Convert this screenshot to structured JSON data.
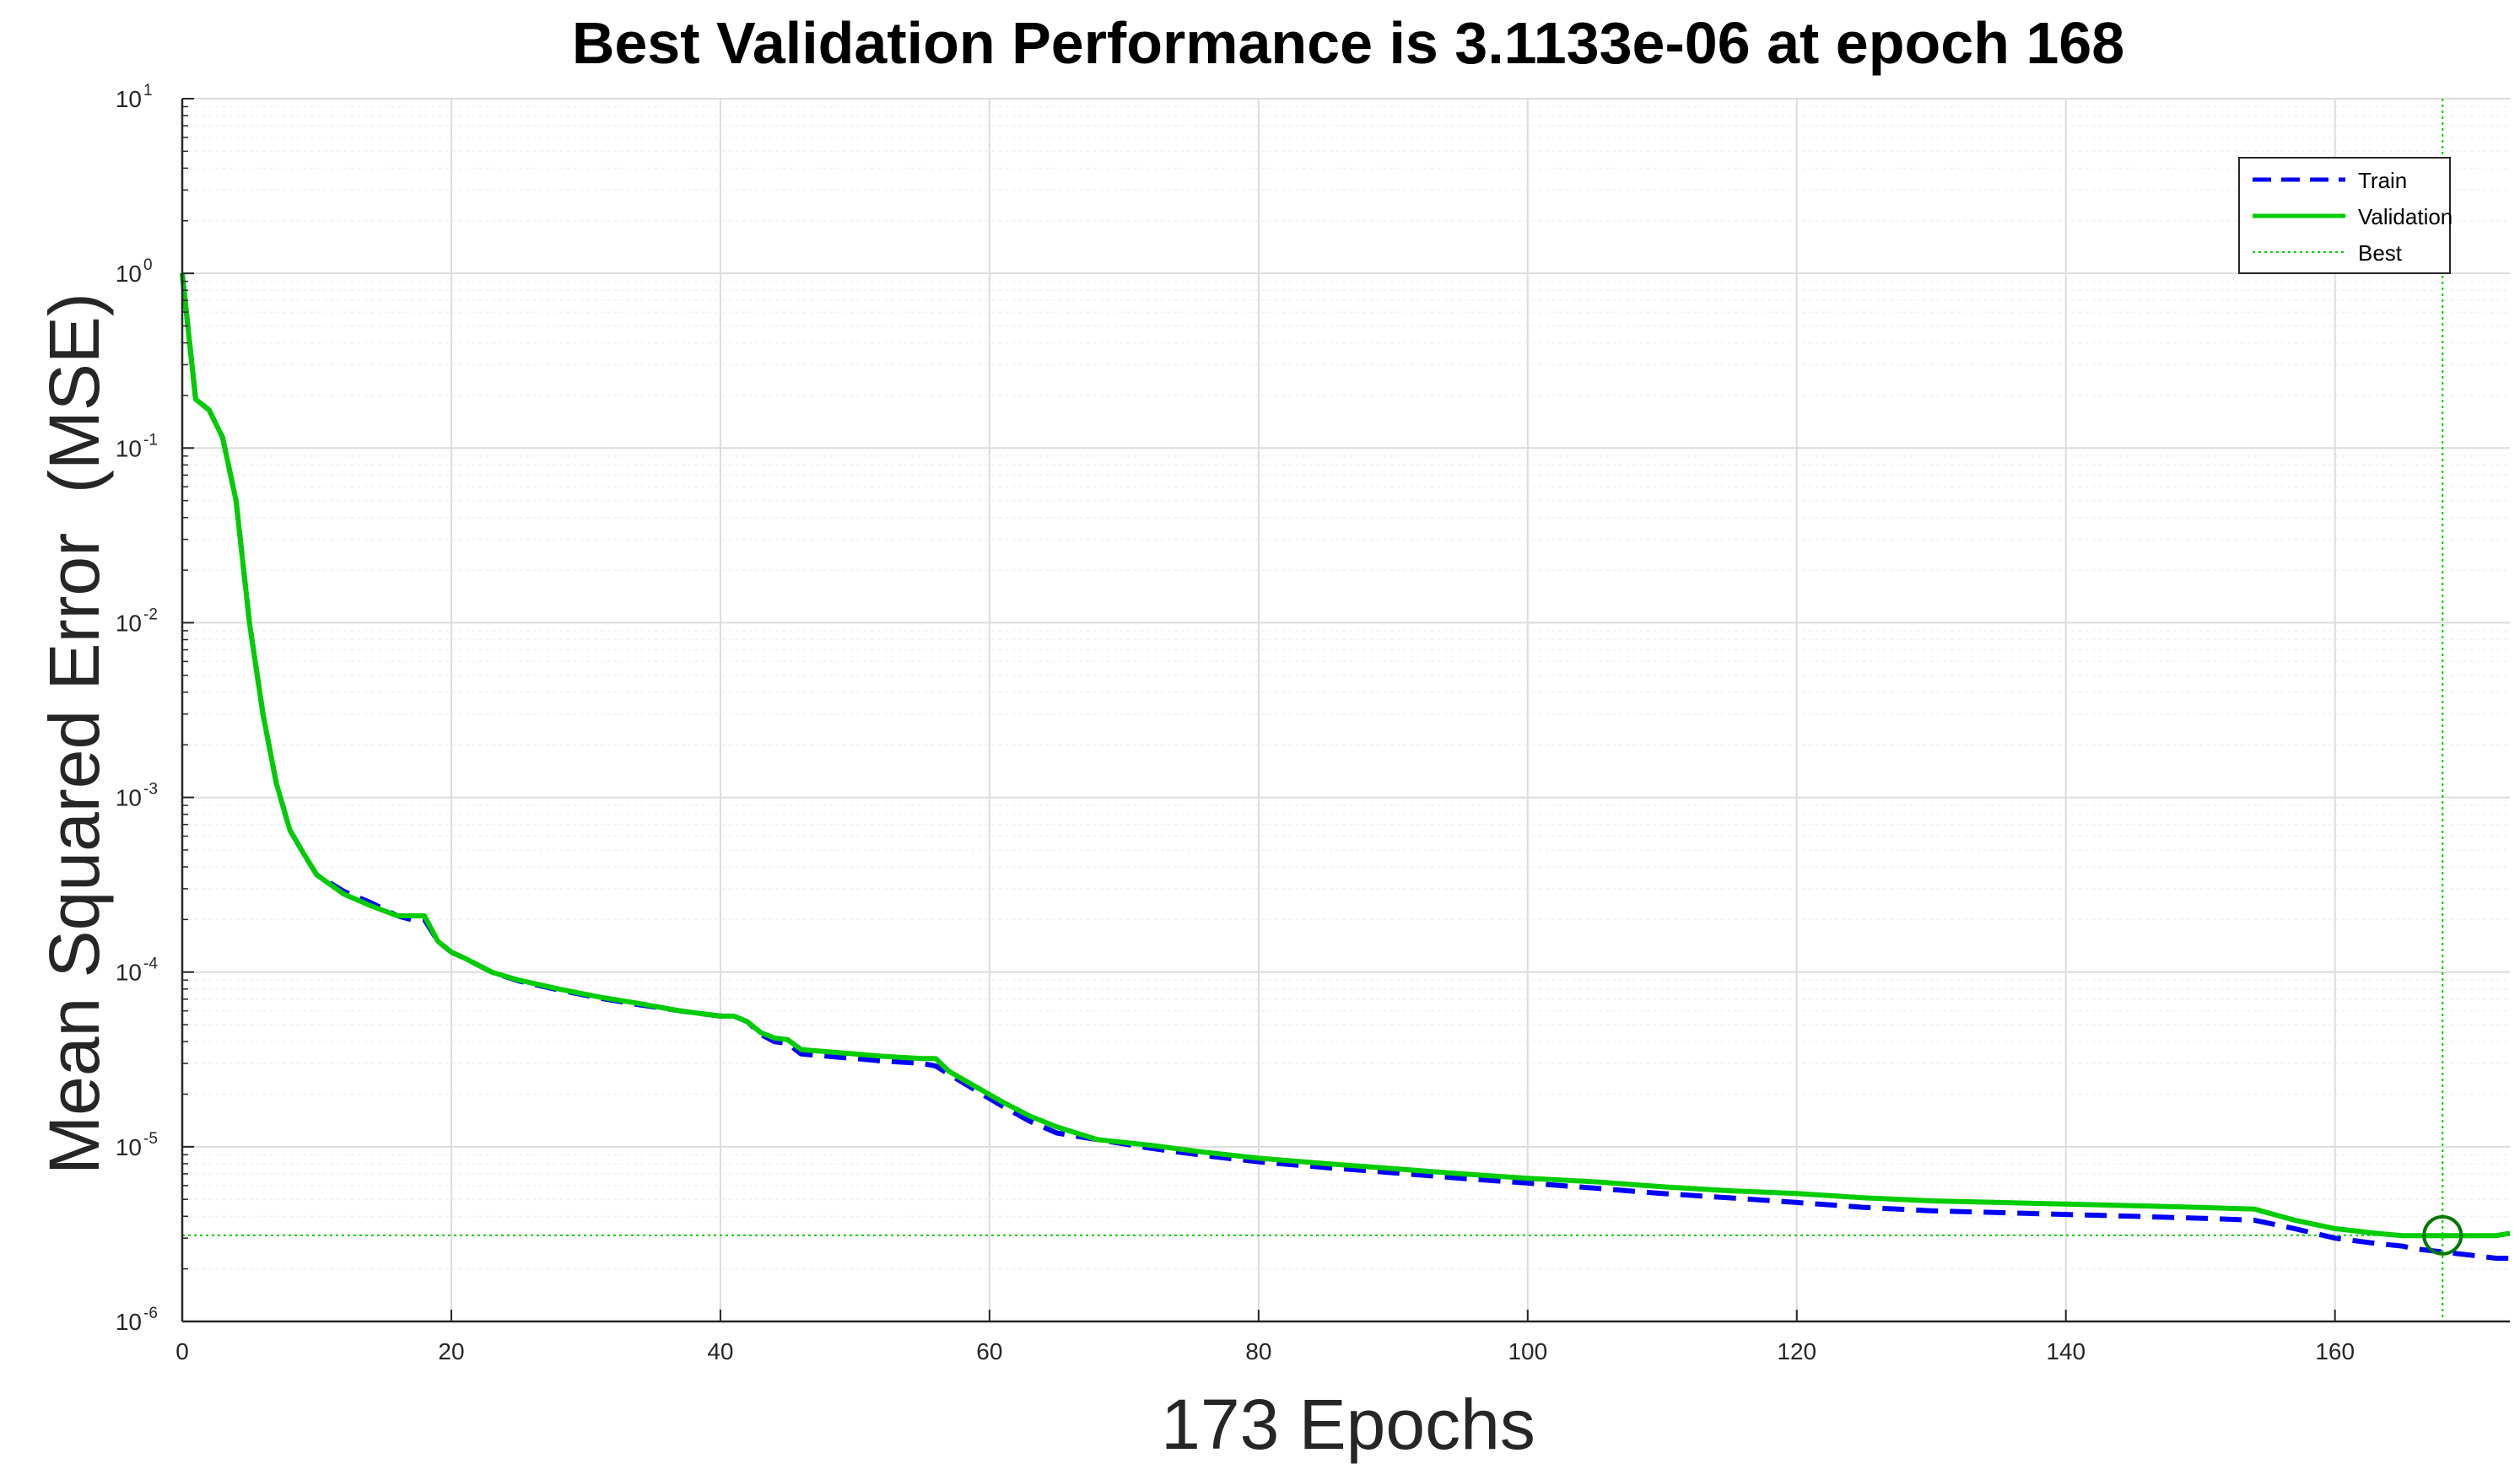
{
  "colors": {
    "train": "#0000ff",
    "validation": "#00cc00",
    "best": "#00cc00",
    "axis": "#262626",
    "grid_major": "#dcdcdc",
    "grid_minor": "#efefef",
    "best_marker": "#007700"
  },
  "chart_data": {
    "type": "line",
    "title": "Best Validation Performance is 3.1133e-06 at epoch 168",
    "xlabel": "173 Epochs",
    "ylabel": "Mean Squared Error  (MSE)",
    "xlim": [
      0,
      173
    ],
    "ylim": [
      1e-06,
      10
    ],
    "yscale": "log",
    "grid": true,
    "legend_position": "top-right",
    "x_ticks": [
      0,
      20,
      40,
      60,
      80,
      100,
      120,
      140,
      160
    ],
    "x_tick_labels": [
      "0",
      "20",
      "40",
      "60",
      "80",
      "100",
      "120",
      "140",
      "160"
    ],
    "y_ticks": [
      {
        "value": 10,
        "base": "10",
        "exp": "1"
      },
      {
        "value": 1,
        "base": "10",
        "exp": "0"
      },
      {
        "value": 0.1,
        "base": "10",
        "exp": "-1"
      },
      {
        "value": 0.01,
        "base": "10",
        "exp": "-2"
      },
      {
        "value": 0.001,
        "base": "10",
        "exp": "-3"
      },
      {
        "value": 0.0001,
        "base": "10",
        "exp": "-4"
      },
      {
        "value": 1e-05,
        "base": "10",
        "exp": "-5"
      },
      {
        "value": 1e-06,
        "base": "10",
        "exp": "-6"
      }
    ],
    "legend": [
      {
        "key": "train",
        "label": "Train",
        "style": "dashed"
      },
      {
        "key": "validation",
        "label": "Validation",
        "style": "solid"
      },
      {
        "key": "best",
        "label": "Best",
        "style": "dotted"
      }
    ],
    "series": [
      {
        "name": "Train",
        "style": "dashed",
        "x": [
          0,
          1,
          2,
          3,
          4,
          5,
          6,
          7,
          8,
          9,
          10,
          12,
          14,
          16,
          17,
          18,
          19,
          20,
          21,
          23,
          25,
          28,
          31,
          34,
          37,
          40,
          41,
          42,
          43,
          44,
          45,
          46,
          48,
          50,
          52,
          55,
          56,
          57,
          59,
          61,
          63,
          65,
          68,
          72,
          76,
          80,
          85,
          90,
          95,
          100,
          105,
          110,
          115,
          120,
          125,
          130,
          135,
          140,
          145,
          150,
          154,
          157,
          160,
          163,
          165,
          166,
          168,
          170,
          172,
          173
        ],
        "y": [
          1.0,
          0.19,
          0.165,
          0.115,
          0.05,
          0.01,
          0.003,
          0.0012,
          0.00065,
          0.00048,
          0.00036,
          0.00029,
          0.00025,
          0.00021,
          0.0002,
          0.0002,
          0.00015,
          0.00013,
          0.00012,
          0.0001,
          8.9e-05,
          7.9e-05,
          7.1e-05,
          6.5e-05,
          6e-05,
          5.6e-05,
          5.6e-05,
          5.2e-05,
          4.4e-05,
          4e-05,
          3.9e-05,
          3.4e-05,
          3.3e-05,
          3.2e-05,
          3.1e-05,
          3e-05,
          2.9e-05,
          2.6e-05,
          2.1e-05,
          1.7e-05,
          1.4e-05,
          1.2e-05,
          1.1e-05,
          9.8e-06,
          8.9e-06,
          8.2e-06,
          7.6e-06,
          7.1e-06,
          6.6e-06,
          6.2e-06,
          5.8e-06,
          5.4e-06,
          5.1e-06,
          4.8e-06,
          4.5e-06,
          4.3e-06,
          4.2e-06,
          4.1e-06,
          4e-06,
          3.9e-06,
          3.8e-06,
          3.4e-06,
          3e-06,
          2.8e-06,
          2.7e-06,
          2.6e-06,
          2.5e-06,
          2.4e-06,
          2.3e-06,
          2.3e-06
        ]
      },
      {
        "name": "Validation",
        "style": "solid",
        "x": [
          0,
          1,
          2,
          3,
          4,
          5,
          6,
          7,
          8,
          9,
          10,
          12,
          14,
          16,
          17,
          18,
          19,
          20,
          21,
          23,
          25,
          28,
          31,
          34,
          37,
          40,
          41,
          42,
          43,
          44,
          45,
          46,
          48,
          50,
          52,
          55,
          56,
          57,
          59,
          61,
          63,
          65,
          68,
          72,
          76,
          80,
          85,
          90,
          95,
          100,
          105,
          110,
          115,
          120,
          125,
          130,
          135,
          140,
          145,
          150,
          154,
          157,
          160,
          163,
          165,
          166,
          168,
          170,
          172,
          173
        ],
        "y": [
          1.0,
          0.19,
          0.165,
          0.115,
          0.05,
          0.01,
          0.003,
          0.0012,
          0.00065,
          0.00048,
          0.00036,
          0.00028,
          0.00024,
          0.00021,
          0.00021,
          0.00021,
          0.00015,
          0.00013,
          0.00012,
          0.0001,
          9e-05,
          8e-05,
          7.2e-05,
          6.6e-05,
          6e-05,
          5.6e-05,
          5.6e-05,
          5.2e-05,
          4.5e-05,
          4.2e-05,
          4.1e-05,
          3.6e-05,
          3.5e-05,
          3.4e-05,
          3.3e-05,
          3.2e-05,
          3.2e-05,
          2.7e-05,
          2.2e-05,
          1.8e-05,
          1.5e-05,
          1.3e-05,
          1.1e-05,
          1.02e-05,
          9.3e-06,
          8.6e-06,
          8e-06,
          7.5e-06,
          7e-06,
          6.6e-06,
          6.3e-06,
          5.9e-06,
          5.6e-06,
          5.4e-06,
          5.1e-06,
          4.9e-06,
          4.8e-06,
          4.7e-06,
          4.6e-06,
          4.5e-06,
          4.4e-06,
          3.8e-06,
          3.4e-06,
          3.2e-06,
          3.1e-06,
          3.1e-06,
          3.1e-06,
          3.1e-06,
          3.1e-06,
          3.2e-06
        ]
      }
    ],
    "best": {
      "epoch": 168,
      "value": 3.1133e-06
    }
  }
}
